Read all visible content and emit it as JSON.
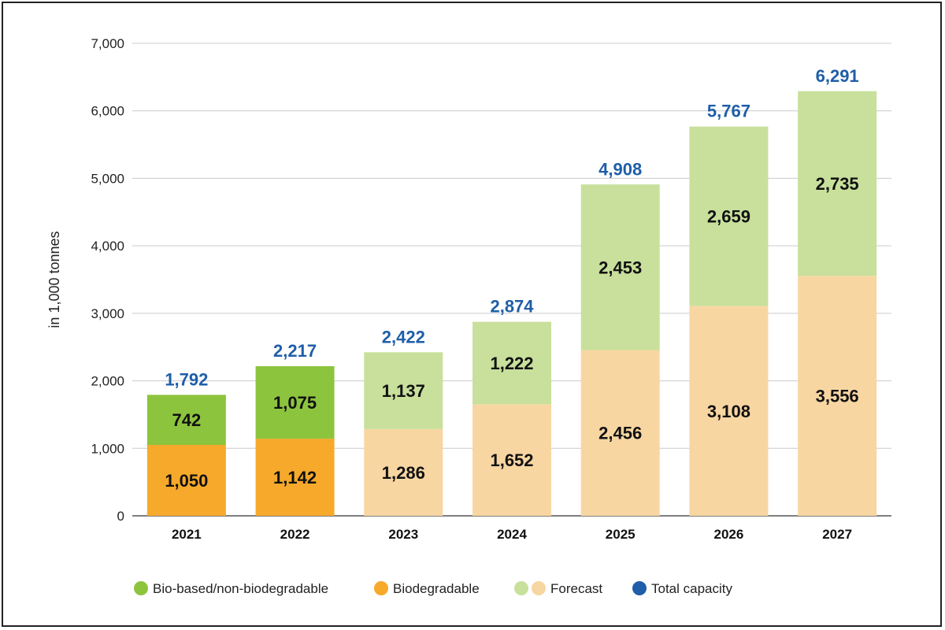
{
  "chart_data": {
    "type": "bar",
    "stacked": true,
    "categories": [
      "2021",
      "2022",
      "2023",
      "2024",
      "2025",
      "2026",
      "2027"
    ],
    "series": [
      {
        "name": "Biodegradable",
        "values": [
          1050,
          1142,
          1286,
          1652,
          2456,
          3108,
          3556
        ]
      },
      {
        "name": "Bio-based/non-biodegradable",
        "values": [
          742,
          1075,
          1137,
          1222,
          2453,
          2659,
          2735
        ]
      }
    ],
    "forecast_from_index": 2,
    "segment_labels": {
      "bottom": [
        "1,050",
        "1,142",
        "1,286",
        "1,652",
        "2,456",
        "3,108",
        "3,556"
      ],
      "top": [
        "742",
        "1,075",
        "1,137",
        "1,222",
        "2,453",
        "2,659",
        "2,735"
      ]
    },
    "totals": [
      1792,
      2217,
      2422,
      2874,
      4908,
      5767,
      6291
    ],
    "total_labels": [
      "1,792",
      "2,217",
      "2,422",
      "2,874",
      "4,908",
      "5,767",
      "6,291"
    ],
    "title": "",
    "xlabel": "",
    "ylabel": "in 1,000 tonnes",
    "ylim": [
      0,
      7000
    ],
    "yticks": [
      0,
      1000,
      2000,
      3000,
      4000,
      5000,
      6000,
      7000
    ],
    "ytick_labels": [
      "0",
      "1,000",
      "2,000",
      "3,000",
      "4,000",
      "5,000",
      "6,000",
      "7,000"
    ],
    "grid": true,
    "legend": {
      "position": "bottom",
      "items": [
        {
          "label": "Bio-based/non-biodegradable",
          "swatches": [
            "#8dc43e"
          ]
        },
        {
          "label": "Biodegradable",
          "swatches": [
            "#f6a92a"
          ]
        },
        {
          "label": "Forecast",
          "swatches": [
            "#c8e09c",
            "#f8d6a2"
          ]
        },
        {
          "label": "Total capacity",
          "swatches": [
            "#1f5ea8"
          ]
        }
      ]
    },
    "colors": {
      "bio_based": "#8dc43e",
      "biodegradable": "#f6a92a",
      "forecast_bio_based": "#c8e09c",
      "forecast_biodegradable": "#f8d6a2",
      "total": "#1f5ea8",
      "grid": "#cccccc"
    }
  }
}
